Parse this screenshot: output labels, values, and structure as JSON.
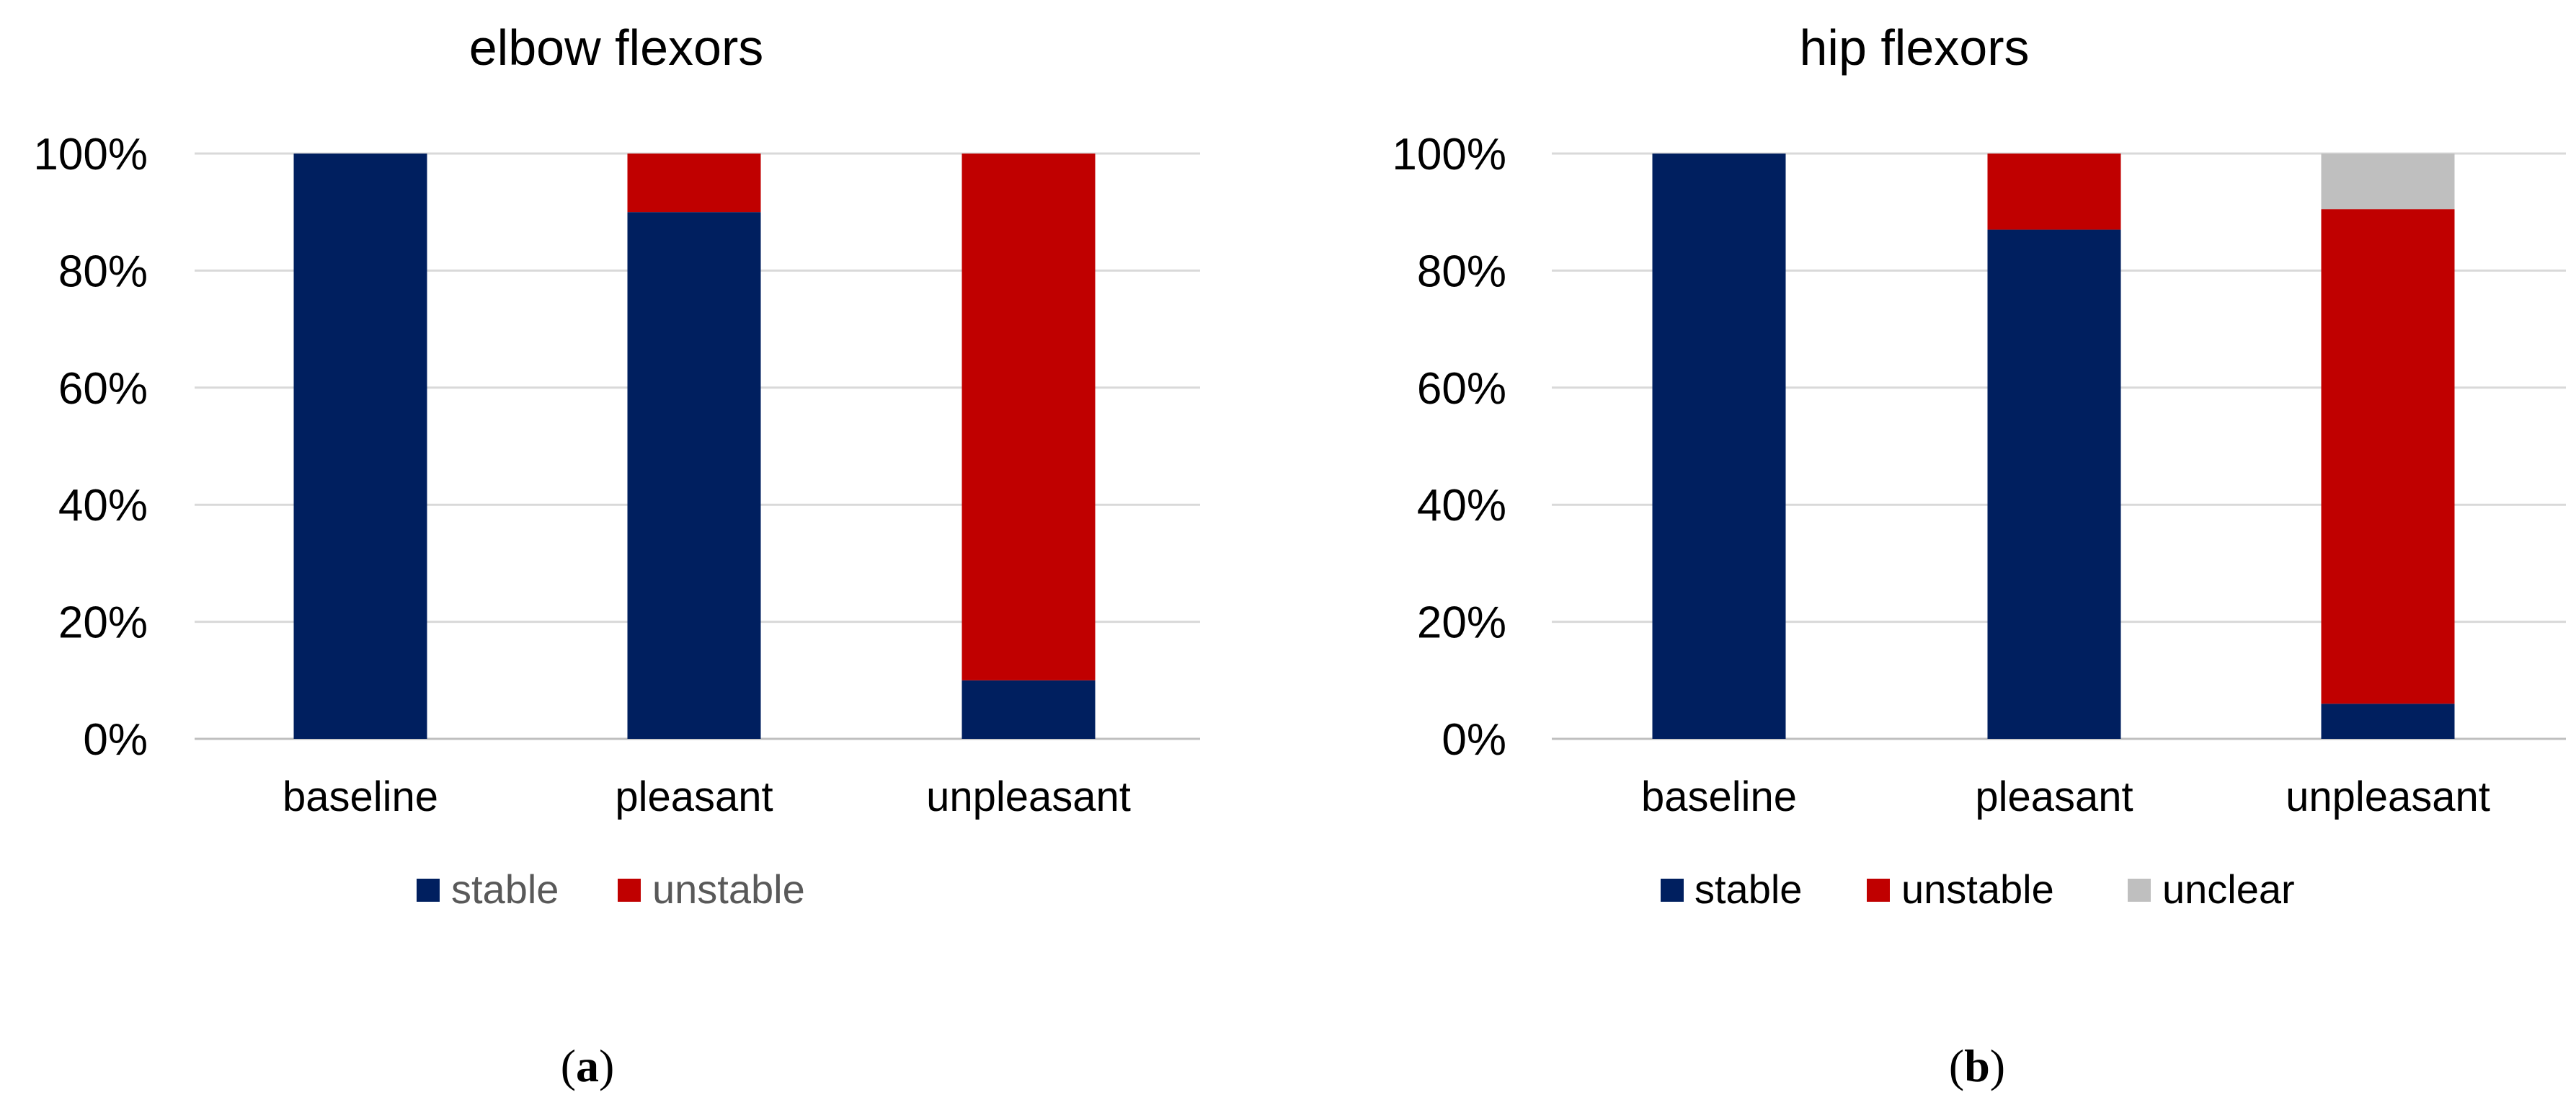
{
  "chart_data": [
    {
      "type": "bar",
      "stacked": true,
      "title": "elbow flexors",
      "panel_label": "a",
      "categories": [
        "baseline",
        "pleasant",
        "unpleasant"
      ],
      "series": [
        {
          "name": "stable",
          "values": [
            100,
            90,
            10
          ],
          "color": "#001F5F"
        },
        {
          "name": "unstable",
          "values": [
            0,
            10,
            90
          ],
          "color": "#C00000"
        }
      ],
      "ylim": [
        0,
        100
      ],
      "yticks": [
        0,
        20,
        40,
        60,
        80,
        100
      ],
      "ytick_labels": [
        "0%",
        "20%",
        "40%",
        "60%",
        "80%",
        "100%"
      ],
      "grid": true,
      "legend_position": "bottom",
      "legend_text_color": "#595959"
    },
    {
      "type": "bar",
      "stacked": true,
      "title": "hip flexors",
      "panel_label": "b",
      "categories": [
        "baseline",
        "pleasant",
        "unpleasant"
      ],
      "series": [
        {
          "name": "stable",
          "values": [
            100,
            87,
            6
          ],
          "color": "#001F5F"
        },
        {
          "name": "unstable",
          "values": [
            0,
            13,
            84.5
          ],
          "color": "#C00000"
        },
        {
          "name": "unclear",
          "values": [
            0,
            0,
            9.5
          ],
          "color": "#BFBFBF"
        }
      ],
      "ylim": [
        0,
        100
      ],
      "yticks": [
        0,
        20,
        40,
        60,
        80,
        100
      ],
      "ytick_labels": [
        "0%",
        "20%",
        "40%",
        "60%",
        "80%",
        "100%"
      ],
      "grid": true,
      "legend_position": "bottom",
      "legend_text_color": "#000000"
    }
  ]
}
